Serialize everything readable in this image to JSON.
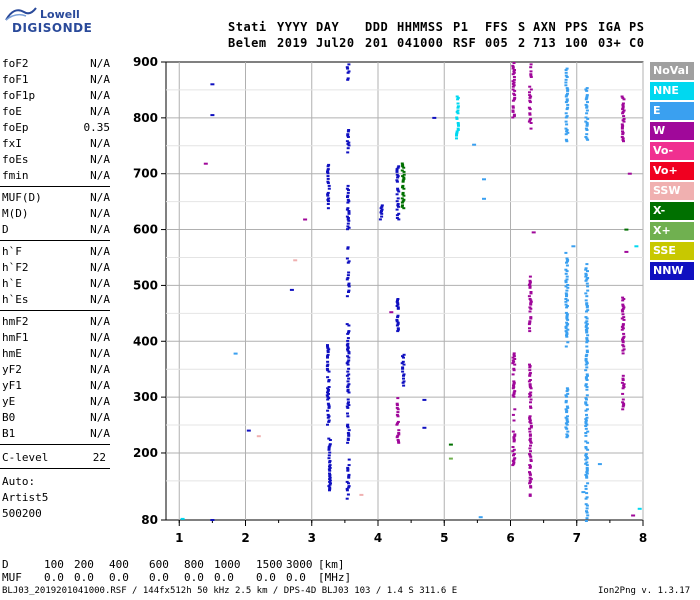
{
  "logo": {
    "line1": "Lowell",
    "line2": "DIGISONDE"
  },
  "header": {
    "labels": [
      "Stati",
      "YYYY",
      "DAY",
      "DDD",
      "HHMMSS",
      "P1",
      "FFS",
      "S",
      "AXN",
      "PPS",
      "IGA",
      "PS"
    ],
    "values": [
      "Belem",
      "2019",
      "Jul20",
      "201",
      "041000",
      "RSF",
      "005",
      "2",
      "713",
      "100",
      "03+",
      "C0"
    ]
  },
  "params": {
    "group1": [
      {
        "name": "foF2",
        "value": "N/A"
      },
      {
        "name": "foF1",
        "value": "N/A"
      },
      {
        "name": "foF1p",
        "value": "N/A"
      },
      {
        "name": "foE",
        "value": "N/A"
      },
      {
        "name": "foEp",
        "value": "0.35"
      },
      {
        "name": "fxI",
        "value": "N/A"
      },
      {
        "name": "foEs",
        "value": "N/A"
      },
      {
        "name": "fmin",
        "value": "N/A"
      }
    ],
    "group2": [
      {
        "name": "MUF(D)",
        "value": "N/A"
      },
      {
        "name": "M(D)",
        "value": "N/A"
      },
      {
        "name": "D",
        "value": "N/A"
      }
    ],
    "group3": [
      {
        "name": "h`F",
        "value": "N/A"
      },
      {
        "name": "h`F2",
        "value": "N/A"
      },
      {
        "name": "h`E",
        "value": "N/A"
      },
      {
        "name": "h`Es",
        "value": "N/A"
      }
    ],
    "group4": [
      {
        "name": "hmF2",
        "value": "N/A"
      },
      {
        "name": "hmF1",
        "value": "N/A"
      },
      {
        "name": "hmE",
        "value": "N/A"
      },
      {
        "name": "yF2",
        "value": "N/A"
      },
      {
        "name": "yF1",
        "value": "N/A"
      },
      {
        "name": "yE",
        "value": "N/A"
      },
      {
        "name": "B0",
        "value": "N/A"
      },
      {
        "name": "B1",
        "value": "N/A"
      }
    ],
    "clevel": {
      "name": "C-level",
      "value": "22"
    },
    "auto": [
      "Auto:",
      "Artist5",
      "500200"
    ]
  },
  "legend": [
    {
      "label": "NoVal",
      "color": "#a0a0a0"
    },
    {
      "label": "NNE",
      "color": "#00d8f0"
    },
    {
      "label": "E",
      "color": "#3aa0f0"
    },
    {
      "label": "W",
      "color": "#a0089a"
    },
    {
      "label": "Vo-",
      "color": "#f03090"
    },
    {
      "label": "Vo+",
      "color": "#f00020"
    },
    {
      "label": "SSW",
      "color": "#f0b0b0"
    },
    {
      "label": "X-",
      "color": "#007000"
    },
    {
      "label": "X+",
      "color": "#70b050"
    },
    {
      "label": "SSE",
      "color": "#c8c800"
    },
    {
      "label": "NNW",
      "color": "#1010c0"
    }
  ],
  "bottom": {
    "d_label": "D",
    "d_values": [
      "100",
      "200",
      "400",
      "600",
      "800",
      "1000",
      "1500",
      "3000"
    ],
    "d_unit": "[km]",
    "muf_label": "MUF",
    "muf_values": [
      "0.0",
      "0.0",
      "0.0",
      "0.0",
      "0.0",
      "0.0",
      "0.0",
      "0.0"
    ],
    "muf_unit": "[MHz]"
  },
  "footer": {
    "left": "BLJ03_2019201041000.RSF / 144fx512h 50 kHz 2.5 km / DPS-4D BLJ03 103 / 1.4 S 311.6 E",
    "right": "Ion2Png v. 1.3.17"
  },
  "chart_data": {
    "type": "scatter",
    "xlim": [
      1,
      8
    ],
    "ylim": [
      80,
      900
    ],
    "x_ticks": [
      "1",
      "2",
      "3",
      "4",
      "5",
      "6",
      "7",
      "8"
    ],
    "y_ticks": [
      "80",
      "200",
      "300",
      "400",
      "500",
      "600",
      "700",
      "800",
      "900"
    ],
    "grid": true,
    "clusters": [
      {
        "x": 3.25,
        "y0": 640,
        "y1": 720,
        "color": "#1010c0"
      },
      {
        "x": 3.25,
        "y0": 400,
        "y1": 250,
        "color": "#1010c0"
      },
      {
        "x": 3.27,
        "y0": 130,
        "y1": 230,
        "color": "#1010c0"
      },
      {
        "x": 3.55,
        "y0": 870,
        "y1": 900,
        "color": "#1010c0"
      },
      {
        "x": 3.55,
        "y0": 740,
        "y1": 780,
        "color": "#1010c0"
      },
      {
        "x": 3.55,
        "y0": 600,
        "y1": 680,
        "color": "#1010c0"
      },
      {
        "x": 3.55,
        "y0": 480,
        "y1": 570,
        "color": "#1010c0"
      },
      {
        "x": 3.55,
        "y0": 310,
        "y1": 440,
        "color": "#1010c0"
      },
      {
        "x": 3.55,
        "y0": 120,
        "y1": 190,
        "color": "#1010c0"
      },
      {
        "x": 3.55,
        "y0": 220,
        "y1": 300,
        "color": "#1010c0"
      },
      {
        "x": 4.05,
        "y0": 620,
        "y1": 650,
        "color": "#1010c0"
      },
      {
        "x": 4.3,
        "y0": 620,
        "y1": 720,
        "color": "#1010c0"
      },
      {
        "x": 4.3,
        "y0": 420,
        "y1": 480,
        "color": "#1010c0"
      },
      {
        "x": 4.3,
        "y0": 220,
        "y1": 300,
        "color": "#a0089a"
      },
      {
        "x": 4.38,
        "y0": 320,
        "y1": 380,
        "color": "#1010c0"
      },
      {
        "x": 4.38,
        "y0": 640,
        "y1": 720,
        "color": "#007000"
      },
      {
        "x": 5.2,
        "y0": 760,
        "y1": 840,
        "color": "#00d8f0"
      },
      {
        "x": 6.05,
        "y0": 800,
        "y1": 900,
        "color": "#a0089a"
      },
      {
        "x": 6.05,
        "y0": 260,
        "y1": 380,
        "color": "#a0089a"
      },
      {
        "x": 6.05,
        "y0": 180,
        "y1": 240,
        "color": "#a0089a"
      },
      {
        "x": 6.3,
        "y0": 780,
        "y1": 900,
        "color": "#a0089a"
      },
      {
        "x": 6.3,
        "y0": 420,
        "y1": 520,
        "color": "#a0089a"
      },
      {
        "x": 6.3,
        "y0": 120,
        "y1": 360,
        "color": "#a0089a"
      },
      {
        "x": 6.85,
        "y0": 390,
        "y1": 560,
        "color": "#3aa0f0"
      },
      {
        "x": 6.85,
        "y0": 230,
        "y1": 320,
        "color": "#3aa0f0"
      },
      {
        "x": 6.85,
        "y0": 760,
        "y1": 890,
        "color": "#3aa0f0"
      },
      {
        "x": 7.15,
        "y0": 80,
        "y1": 540,
        "color": "#3aa0f0"
      },
      {
        "x": 7.15,
        "y0": 760,
        "y1": 860,
        "color": "#3aa0f0"
      },
      {
        "x": 7.7,
        "y0": 380,
        "y1": 480,
        "color": "#a0089a"
      },
      {
        "x": 7.7,
        "y0": 760,
        "y1": 840,
        "color": "#a0089a"
      },
      {
        "x": 7.7,
        "y0": 280,
        "y1": 340,
        "color": "#a0089a"
      }
    ],
    "points": [
      {
        "x": 1.5,
        "y": 860,
        "color": "#1010c0"
      },
      {
        "x": 1.5,
        "y": 805,
        "color": "#1010c0"
      },
      {
        "x": 1.4,
        "y": 718,
        "color": "#a0089a"
      },
      {
        "x": 2.7,
        "y": 492,
        "color": "#1010c0"
      },
      {
        "x": 2.75,
        "y": 545,
        "color": "#f0b0b0"
      },
      {
        "x": 2.9,
        "y": 618,
        "color": "#a0089a"
      },
      {
        "x": 1.85,
        "y": 378,
        "color": "#3aa0f0"
      },
      {
        "x": 2.05,
        "y": 240,
        "color": "#1010c0"
      },
      {
        "x": 2.2,
        "y": 230,
        "color": "#f0b0b0"
      },
      {
        "x": 1.05,
        "y": 82,
        "color": "#00d8f0"
      },
      {
        "x": 1.5,
        "y": 80,
        "color": "#1010c0"
      },
      {
        "x": 3.75,
        "y": 125,
        "color": "#f0b0b0"
      },
      {
        "x": 4.2,
        "y": 452,
        "color": "#a0089a"
      },
      {
        "x": 4.7,
        "y": 245,
        "color": "#1010c0"
      },
      {
        "x": 4.7,
        "y": 295,
        "color": "#1010c0"
      },
      {
        "x": 4.85,
        "y": 800,
        "color": "#1010c0"
      },
      {
        "x": 5.1,
        "y": 215,
        "color": "#007000"
      },
      {
        "x": 5.1,
        "y": 190,
        "color": "#70b050"
      },
      {
        "x": 5.45,
        "y": 752,
        "color": "#3aa0f0"
      },
      {
        "x": 5.6,
        "y": 690,
        "color": "#3aa0f0"
      },
      {
        "x": 5.6,
        "y": 655,
        "color": "#3aa0f0"
      },
      {
        "x": 5.55,
        "y": 85,
        "color": "#3aa0f0"
      },
      {
        "x": 6.35,
        "y": 595,
        "color": "#a0089a"
      },
      {
        "x": 6.95,
        "y": 570,
        "color": "#3aa0f0"
      },
      {
        "x": 7.1,
        "y": 130,
        "color": "#3aa0f0"
      },
      {
        "x": 7.35,
        "y": 180,
        "color": "#3aa0f0"
      },
      {
        "x": 7.75,
        "y": 560,
        "color": "#a0089a"
      },
      {
        "x": 7.75,
        "y": 600,
        "color": "#007000"
      },
      {
        "x": 7.8,
        "y": 700,
        "color": "#a0089a"
      },
      {
        "x": 7.9,
        "y": 570,
        "color": "#00d8f0"
      },
      {
        "x": 7.85,
        "y": 88,
        "color": "#a0089a"
      },
      {
        "x": 7.95,
        "y": 100,
        "color": "#00d8f0"
      }
    ]
  }
}
